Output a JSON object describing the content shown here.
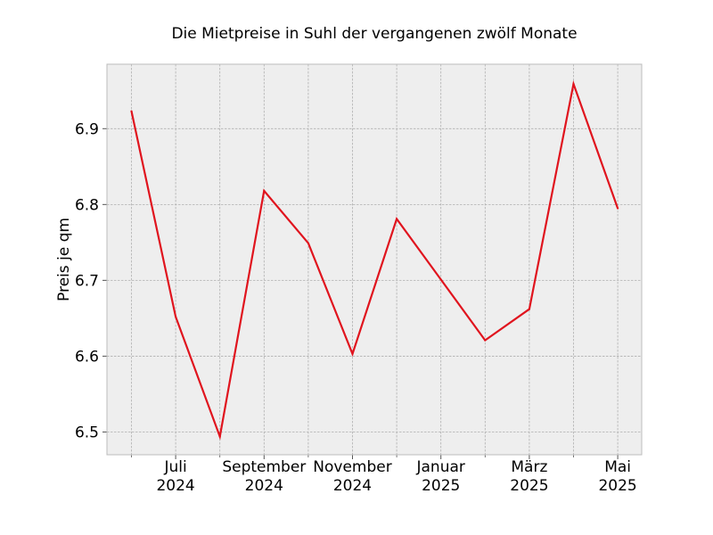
{
  "chart_data": {
    "type": "line",
    "title": "Die Mietpreise in Suhl der vergangenen zwölf Monate",
    "xlabel": "",
    "ylabel": "Preis je qm",
    "x": [
      "2024-06",
      "2024-07",
      "2024-08",
      "2024-09",
      "2024-10",
      "2024-11",
      "2024-12",
      "2025-01",
      "2025-02",
      "2025-03",
      "2025-04",
      "2025-05"
    ],
    "series": [
      {
        "values": [
          6.923,
          6.652,
          6.494,
          6.818,
          6.749,
          6.603,
          6.781,
          6.701,
          6.621,
          6.662,
          6.959,
          6.795
        ],
        "color": "#e0141e"
      }
    ],
    "ylim": [
      6.47,
      6.985
    ],
    "yticks": [
      6.5,
      6.6,
      6.7,
      6.8,
      6.9
    ],
    "ytick_labels": [
      "6.5",
      "6.6",
      "6.7",
      "6.8",
      "6.9"
    ],
    "xticks_major": [
      {
        "x": "2024-07",
        "line1": "Juli",
        "line2": "2024"
      },
      {
        "x": "2024-09",
        "line1": "September",
        "line2": "2024"
      },
      {
        "x": "2024-11",
        "line1": "November",
        "line2": "2024"
      },
      {
        "x": "2025-01",
        "line1": "Januar",
        "line2": "2025"
      },
      {
        "x": "2025-03",
        "line1": "März",
        "line2": "2025"
      },
      {
        "x": "2025-05",
        "line1": "Mai",
        "line2": "2025"
      }
    ],
    "xticks_minor": [
      "2024-06",
      "2024-08",
      "2024-10",
      "2024-12",
      "2025-02",
      "2025-04"
    ],
    "grid": true,
    "legend": "none",
    "colors": {
      "plot_bg": "#eeeeee",
      "grid": "#b0b0b0",
      "frame": "#bcbcbc"
    }
  }
}
